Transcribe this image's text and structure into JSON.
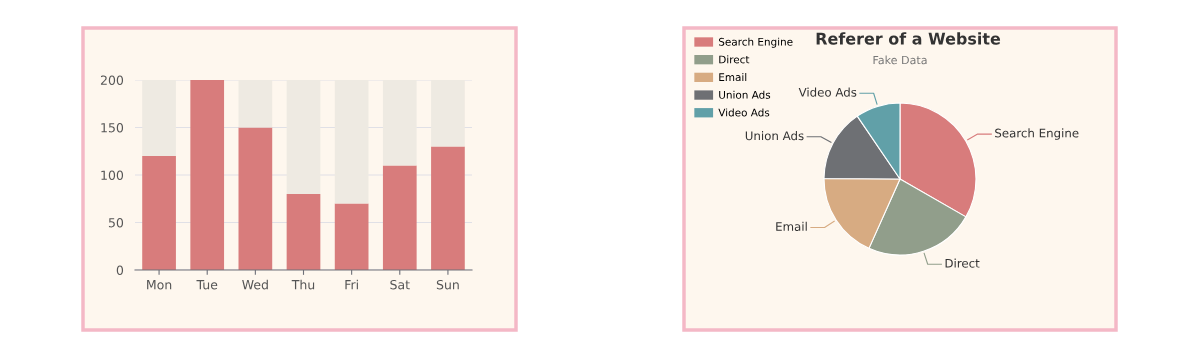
{
  "chart_data": [
    {
      "type": "bar",
      "categories": [
        "Mon",
        "Tue",
        "Wed",
        "Thu",
        "Fri",
        "Sat",
        "Sun"
      ],
      "stacked": true,
      "series": [
        {
          "color": "#d87c7c",
          "values": [
            120,
            200,
            150,
            80,
            70,
            110,
            130
          ]
        },
        {
          "color": "#eeeae2",
          "values": [
            80,
            0,
            50,
            120,
            130,
            90,
            70
          ]
        }
      ],
      "ylim": [
        0,
        200
      ],
      "yticks": [
        0,
        50,
        100,
        150,
        200
      ],
      "grid": "y",
      "legend": false
    },
    {
      "type": "pie",
      "title": "Referer of a Website",
      "subtitle": "Fake Data",
      "categories": [
        "Search Engine",
        "Direct",
        "Email",
        "Union Ads",
        "Video Ads"
      ],
      "values": [
        33.3,
        23.4,
        18.4,
        15.4,
        9.5
      ],
      "colors": [
        "#d87c7c",
        "#919e8b",
        "#d7ab82",
        "#6e7074",
        "#61a0a8"
      ],
      "legend": "top left"
    }
  ]
}
